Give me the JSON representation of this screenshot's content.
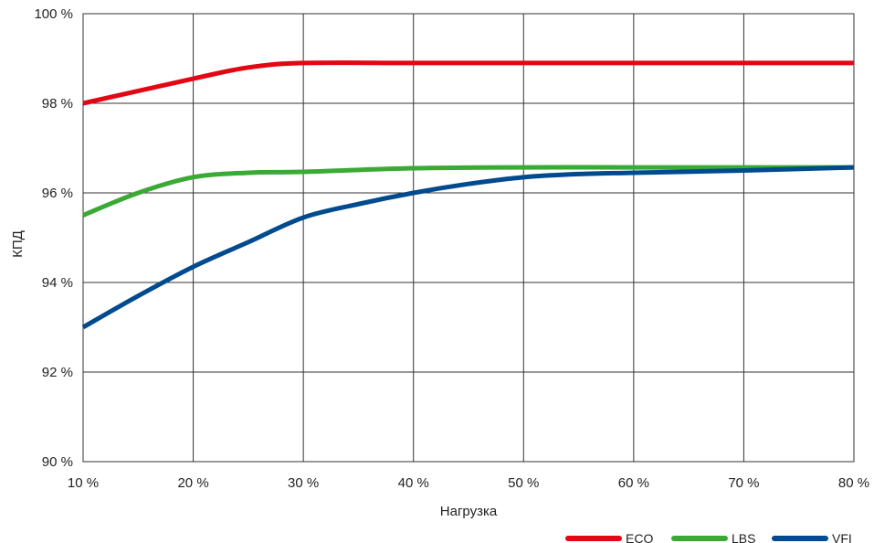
{
  "chart_data": {
    "type": "line",
    "xlabel": "Нагрузка",
    "ylabel": "КПД",
    "x": [
      10,
      20,
      30,
      40,
      50,
      60,
      70,
      80
    ],
    "xlim": [
      10,
      80
    ],
    "ylim": [
      90,
      100
    ],
    "x_ticks": [
      "10 %",
      "20 %",
      "30 %",
      "40 %",
      "50 %",
      "60 %",
      "70 %",
      "80 %"
    ],
    "y_ticks": [
      "90 %",
      "92 %",
      "94 %",
      "96 %",
      "98 %",
      "100 %"
    ],
    "y_tick_values": [
      90,
      92,
      94,
      96,
      98,
      100
    ],
    "grid": true,
    "legend_position": "bottom-right",
    "series": [
      {
        "name": "ECO",
        "color": "#e30613",
        "points": [
          [
            10,
            98.0
          ],
          [
            20,
            98.55
          ],
          [
            25,
            98.8
          ],
          [
            30,
            98.9
          ],
          [
            40,
            98.9
          ],
          [
            50,
            98.9
          ],
          [
            60,
            98.9
          ],
          [
            70,
            98.9
          ],
          [
            80,
            98.9
          ]
        ]
      },
      {
        "name": "LBS",
        "color": "#3aaa35",
        "points": [
          [
            10,
            95.5
          ],
          [
            15,
            96.0
          ],
          [
            20,
            96.35
          ],
          [
            25,
            96.45
          ],
          [
            30,
            96.47
          ],
          [
            40,
            96.55
          ],
          [
            50,
            96.57
          ],
          [
            60,
            96.57
          ],
          [
            70,
            96.57
          ],
          [
            80,
            96.57
          ]
        ]
      },
      {
        "name": "VFI",
        "color": "#004a8f",
        "points": [
          [
            10,
            93.0
          ],
          [
            15,
            93.7
          ],
          [
            20,
            94.35
          ],
          [
            25,
            94.9
          ],
          [
            30,
            95.45
          ],
          [
            35,
            95.75
          ],
          [
            40,
            96.0
          ],
          [
            45,
            96.2
          ],
          [
            50,
            96.35
          ],
          [
            55,
            96.42
          ],
          [
            60,
            96.45
          ],
          [
            70,
            96.5
          ],
          [
            80,
            96.57
          ]
        ]
      }
    ]
  }
}
